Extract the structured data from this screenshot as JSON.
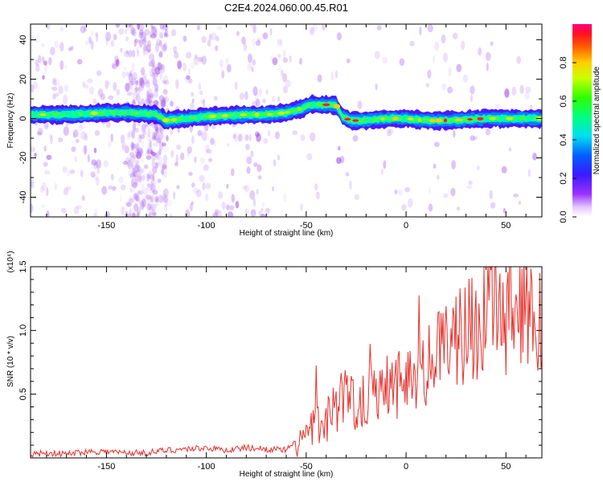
{
  "title": "C2E4.2024.060.00.45.R01",
  "chart_data": [
    {
      "type": "heatmap",
      "xlabel": "Height of straight line (km)",
      "ylabel": "Frequency (Hz)",
      "xlim": [
        -188,
        68
      ],
      "ylim": [
        -50,
        48
      ],
      "xticks": [
        -150,
        -100,
        -50,
        0,
        50
      ],
      "yticks": [
        -40,
        -20,
        0,
        20,
        40
      ],
      "ridge": {
        "x": [
          -188,
          -170,
          -150,
          -140,
          -125,
          -120,
          -110,
          -100,
          -80,
          -70,
          -60,
          -52,
          -48,
          -40,
          -35,
          -32,
          -28,
          -20,
          -10,
          0,
          10,
          20,
          40,
          60,
          68
        ],
        "y": [
          2,
          2,
          3,
          3,
          2,
          -1,
          0,
          1,
          2,
          2,
          3,
          5,
          7,
          7,
          7,
          1,
          -1,
          -1,
          0,
          0,
          -1,
          -1,
          0,
          0,
          0
        ]
      },
      "colorbar": {
        "label": "Normalized spectral amplitude",
        "range": [
          0.0,
          1.0
        ],
        "ticks": [
          0.0,
          0.2,
          0.4,
          0.6,
          0.8
        ]
      }
    },
    {
      "type": "line",
      "xlabel": "Height of straight line (km)",
      "ylabel": "SNR (10 * v/v)",
      "yscale_label": "(x10⁴)",
      "xlim": [
        -188,
        68
      ],
      "ylim": [
        0,
        1.5
      ],
      "xticks": [
        -150,
        -100,
        -50,
        0,
        50
      ],
      "yticks": [
        0.5,
        1.0,
        1.5
      ],
      "ytick_labels": [
        "0.5",
        "1.0",
        "1.5"
      ],
      "series": [
        {
          "color": "#e8302a",
          "x": [
            -188,
            -180,
            -170,
            -160,
            -150,
            -140,
            -130,
            -120,
            -110,
            -100,
            -90,
            -80,
            -70,
            -60,
            -55,
            -50,
            -45,
            -40,
            -35,
            -30,
            -25,
            -20,
            -15,
            -10,
            -5,
            0,
            5,
            10,
            15,
            20,
            25,
            30,
            35,
            40,
            45,
            50,
            55,
            60,
            65,
            68
          ],
          "y": [
            0.03,
            0.04,
            0.03,
            0.05,
            0.05,
            0.04,
            0.04,
            0.06,
            0.07,
            0.08,
            0.06,
            0.08,
            0.07,
            0.06,
            0.12,
            0.18,
            0.25,
            0.3,
            0.42,
            0.48,
            0.45,
            0.48,
            0.55,
            0.62,
            0.58,
            0.65,
            0.68,
            0.72,
            0.78,
            0.86,
            0.95,
            1.02,
            1.05,
            1.08,
            1.1,
            1.12,
            1.15,
            1.1,
            1.05,
            1.08
          ]
        }
      ]
    }
  ]
}
